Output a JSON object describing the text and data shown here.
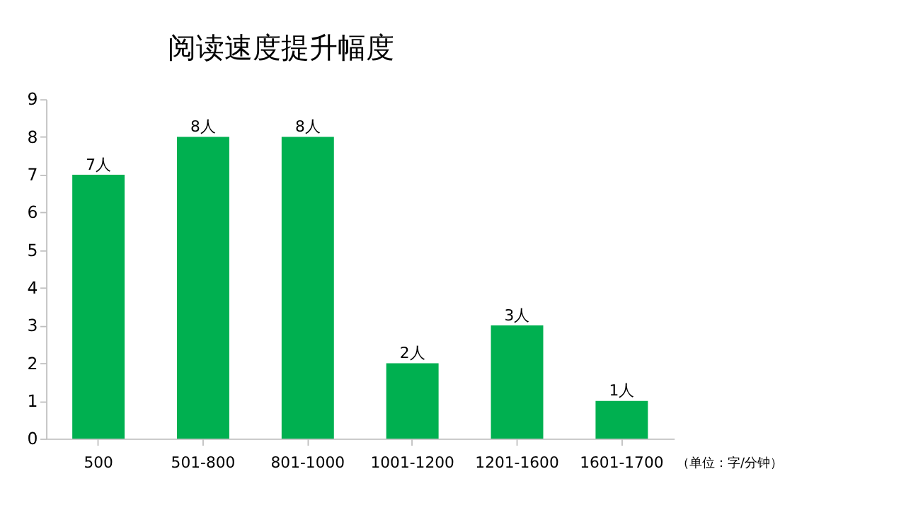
{
  "chart_data": {
    "type": "bar",
    "title": "阅读速度提升幅度",
    "categories": [
      "500",
      "501-800",
      "801-1000",
      "1001-1200",
      "1201-1600",
      "1601-1700"
    ],
    "values": [
      7,
      8,
      8,
      2,
      3,
      1
    ],
    "value_labels": [
      "7人",
      "8人",
      "8人",
      "2人",
      "3人",
      "1人"
    ],
    "color": "#00b050",
    "ylim": [
      0,
      9
    ],
    "yticks": [
      0,
      1,
      2,
      3,
      4,
      5,
      6,
      7,
      8,
      9
    ],
    "grid": false,
    "annotations": [
      "（单位：字/分钟）"
    ]
  }
}
